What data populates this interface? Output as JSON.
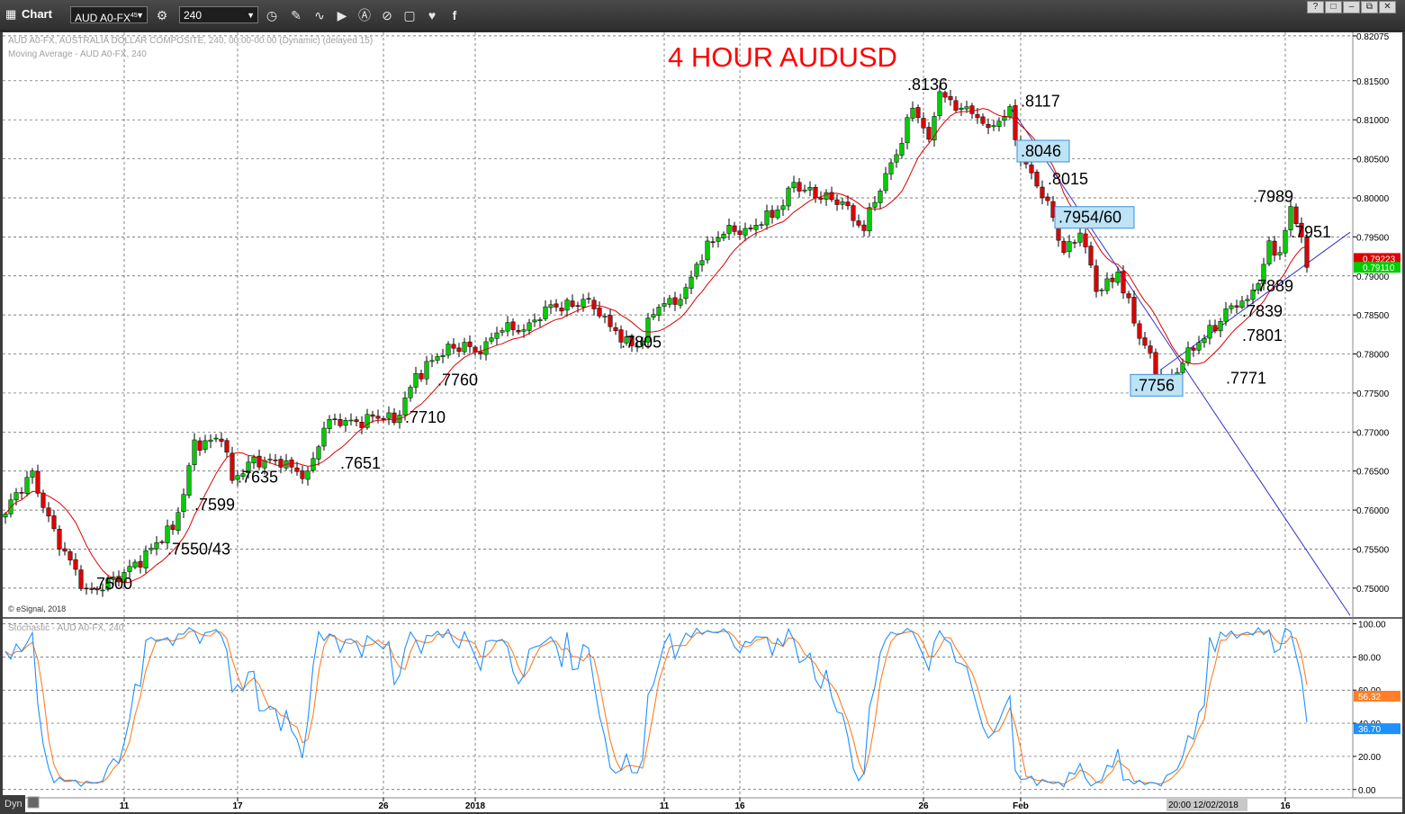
{
  "window": {
    "title": "Chart",
    "symbol": "AUD A0-FX",
    "symbol_superscript": "45",
    "interval": "240",
    "icons": [
      "settings-icon",
      "clock-icon",
      "draw-icon",
      "curve-icon",
      "play-icon",
      "alert-icon",
      "link-icon",
      "chat-icon",
      "twitter-icon",
      "facebook-icon"
    ],
    "window_buttons": [
      "?",
      "□",
      "–",
      "⧉",
      "✕"
    ]
  },
  "chart": {
    "legend_line1": "AUD A0-FX, AUSTRALIA DOLLAR COMPOSITE, 240, 00:00-00:00 (Dynamic) (delayed 15)",
    "legend_line2": "Moving Average - AUD A0-FX, 240",
    "copyright": "© eSignal, 2018",
    "title": "4 HOUR AUDUSD",
    "title_color": "#ff0000",
    "stoch_legend": "Stochastic - AUD A0-FX, 240",
    "footer_left": "Dyn",
    "cursor_time_label": "20:00 12/02/2018",
    "up_color": "#00cc00",
    "down_color": "#dd0000",
    "ma_color": "#dd0000",
    "trend_color": "#3333cc"
  },
  "chart_data": {
    "type": "candlestick",
    "price_axis": {
      "ylim": [
        0.7463,
        0.8212
      ],
      "ticks": [
        "0.82075",
        "0.81500",
        "0.81000",
        "0.80500",
        "0.80000",
        "0.79500",
        "0.79000",
        "0.78500",
        "0.78000",
        "0.77500",
        "0.77000",
        "0.76500",
        "0.76000",
        "0.75500",
        "0.75000"
      ],
      "current_labels": [
        {
          "text": "0.79223",
          "value": 0.79223,
          "color": "#dd0000"
        },
        {
          "text": "0.79110",
          "value": 0.7911,
          "color": "#00cc00"
        }
      ]
    },
    "x_axis": {
      "labels": [
        {
          "text": "11",
          "bar": 22
        },
        {
          "text": "17",
          "bar": 43
        },
        {
          "text": "26",
          "bar": 70
        },
        {
          "text": "2018",
          "bar": 87
        },
        {
          "text": "11",
          "bar": 122
        },
        {
          "text": "16",
          "bar": 136
        },
        {
          "text": "26",
          "bar": 170
        },
        {
          "text": "Feb",
          "bar": 188
        },
        {
          "text": "16",
          "bar": 237
        }
      ],
      "total_bars": 250
    },
    "price_path": [
      [
        0,
        0.7595
      ],
      [
        5,
        0.765
      ],
      [
        10,
        0.755
      ],
      [
        15,
        0.75
      ],
      [
        21,
        0.7508
      ],
      [
        26,
        0.7548
      ],
      [
        31,
        0.7575
      ],
      [
        33,
        0.762
      ],
      [
        35,
        0.769
      ],
      [
        40,
        0.7688
      ],
      [
        42,
        0.7638
      ],
      [
        46,
        0.7668
      ],
      [
        51,
        0.7655
      ],
      [
        56,
        0.765
      ],
      [
        59,
        0.7705
      ],
      [
        63,
        0.7715
      ],
      [
        68,
        0.772
      ],
      [
        72,
        0.7712
      ],
      [
        76,
        0.7775
      ],
      [
        81,
        0.7798
      ],
      [
        85,
        0.7815
      ],
      [
        88,
        0.78
      ],
      [
        92,
        0.783
      ],
      [
        97,
        0.784
      ],
      [
        102,
        0.786
      ],
      [
        107,
        0.787
      ],
      [
        112,
        0.7835
      ],
      [
        117,
        0.781
      ],
      [
        121,
        0.786
      ],
      [
        125,
        0.787
      ],
      [
        128,
        0.7915
      ],
      [
        134,
        0.7965
      ],
      [
        138,
        0.796
      ],
      [
        142,
        0.7975
      ],
      [
        146,
        0.802
      ],
      [
        150,
        0.8
      ],
      [
        155,
        0.7995
      ],
      [
        159,
        0.7958
      ],
      [
        164,
        0.8045
      ],
      [
        168,
        0.8115
      ],
      [
        171,
        0.8075
      ],
      [
        173,
        0.8136
      ],
      [
        177,
        0.8115
      ],
      [
        182,
        0.809
      ],
      [
        186,
        0.8117
      ],
      [
        188,
        0.8046
      ],
      [
        191,
        0.8015
      ],
      [
        194,
        0.7975
      ],
      [
        196,
        0.793
      ],
      [
        199,
        0.7955
      ],
      [
        202,
        0.788
      ],
      [
        206,
        0.7905
      ],
      [
        210,
        0.782
      ],
      [
        214,
        0.7765
      ],
      [
        218,
        0.7788
      ],
      [
        222,
        0.782
      ],
      [
        226,
        0.7858
      ],
      [
        230,
        0.787
      ],
      [
        232,
        0.789
      ],
      [
        234,
        0.7945
      ],
      [
        236,
        0.793
      ],
      [
        238,
        0.7989
      ],
      [
        240,
        0.795
      ],
      [
        241,
        0.7911
      ]
    ],
    "moving_average": {
      "period": 10
    },
    "trendlines": [
      {
        "from": [
          186,
          0.8117
        ],
        "to": [
          249,
          0.7465
        ]
      },
      {
        "from": [
          214,
          0.778
        ],
        "to": [
          249,
          0.7956
        ]
      }
    ],
    "annotations": [
      {
        "text": ".8136",
        "bar": 167,
        "price": 0.8138
      },
      {
        "text": ".8117",
        "bar": 188,
        "price": 0.8117
      },
      {
        "text": ".8046",
        "bar": 188,
        "price": 0.8053,
        "boxed": true
      },
      {
        "text": ".8015",
        "bar": 193,
        "price": 0.8017
      },
      {
        "text": ".7954/60",
        "bar": 195,
        "price": 0.7968,
        "boxed": true
      },
      {
        "text": ".7989",
        "bar": 231,
        "price": 0.7995
      },
      {
        "text": ".7951",
        "bar": 238,
        "price": 0.7949
      },
      {
        "text": ".7889",
        "bar": 231,
        "price": 0.788
      },
      {
        "text": ".7839",
        "bar": 229,
        "price": 0.7848
      },
      {
        "text": ".7801",
        "bar": 229,
        "price": 0.7817
      },
      {
        "text": ".7771",
        "bar": 226,
        "price": 0.7762
      },
      {
        "text": ".7756",
        "bar": 209,
        "price": 0.7753,
        "boxed": true
      },
      {
        "text": ".7805",
        "bar": 114,
        "price": 0.7808
      },
      {
        "text": ".7760",
        "bar": 80,
        "price": 0.776
      },
      {
        "text": ".7710",
        "bar": 74,
        "price": 0.7712
      },
      {
        "text": ".7651",
        "bar": 62,
        "price": 0.7653
      },
      {
        "text": ".7635",
        "bar": 43,
        "price": 0.7635
      },
      {
        "text": ".7599",
        "bar": 35,
        "price": 0.76
      },
      {
        "text": ".7550/43",
        "bar": 30,
        "price": 0.7543
      },
      {
        "text": ".7500",
        "bar": 16,
        "price": 0.7499
      }
    ],
    "stochastic": {
      "ylim": [
        -5,
        103
      ],
      "ticks": [
        "100.00",
        "80.00",
        "60.00",
        "40.00",
        "20.00",
        "0.00"
      ],
      "k_color": "#1e90ff",
      "d_color": "#ff7f27",
      "current_labels": [
        {
          "text": "56.32",
          "value": 56.32,
          "color": "#ff7f27"
        },
        {
          "text": "36.70",
          "value": 36.7,
          "color": "#1e90ff"
        }
      ]
    }
  }
}
